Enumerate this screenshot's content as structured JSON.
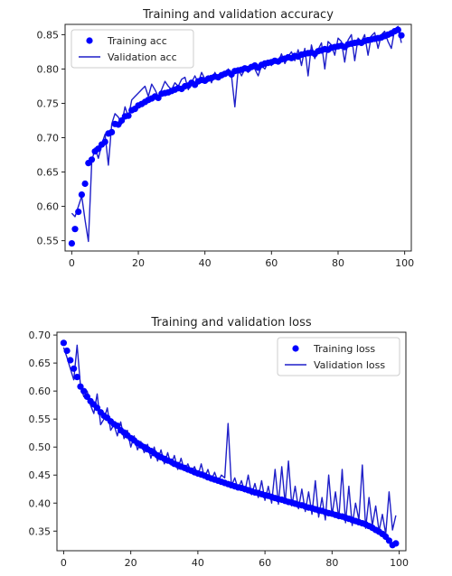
{
  "chart_data": [
    {
      "type": "line",
      "title": "Training and validation accuracy",
      "xlabel": "",
      "ylabel": "",
      "xlim": [
        -2,
        102
      ],
      "ylim": [
        0.535,
        0.865
      ],
      "xticks": [
        0,
        20,
        40,
        60,
        80,
        100
      ],
      "yticks": [
        0.55,
        0.6,
        0.65,
        0.7,
        0.75,
        0.8,
        0.85
      ],
      "ytick_labels": [
        "0.55",
        "0.60",
        "0.65",
        "0.70",
        "0.75",
        "0.80",
        "0.85"
      ],
      "legend_position": "upper-left",
      "grid": false,
      "series": [
        {
          "name": "Training acc",
          "style": "markers",
          "color": "#0000ff",
          "x": [
            0,
            1,
            2,
            3,
            4,
            5,
            6,
            7,
            8,
            9,
            10,
            11,
            12,
            13,
            14,
            15,
            16,
            17,
            18,
            19,
            20,
            21,
            22,
            23,
            24,
            25,
            26,
            27,
            28,
            29,
            30,
            31,
            32,
            33,
            34,
            35,
            36,
            37,
            38,
            39,
            40,
            41,
            42,
            43,
            44,
            45,
            46,
            47,
            48,
            49,
            50,
            51,
            52,
            53,
            54,
            55,
            56,
            57,
            58,
            59,
            60,
            61,
            62,
            63,
            64,
            65,
            66,
            67,
            68,
            69,
            70,
            71,
            72,
            73,
            74,
            75,
            76,
            77,
            78,
            79,
            80,
            81,
            82,
            83,
            84,
            85,
            86,
            87,
            88,
            89,
            90,
            91,
            92,
            93,
            94,
            95,
            96,
            97,
            98,
            99
          ],
          "y": [
            0.546,
            0.567,
            0.592,
            0.617,
            0.633,
            0.663,
            0.668,
            0.68,
            0.684,
            0.69,
            0.694,
            0.706,
            0.708,
            0.72,
            0.719,
            0.725,
            0.731,
            0.732,
            0.74,
            0.742,
            0.747,
            0.749,
            0.752,
            0.755,
            0.757,
            0.76,
            0.758,
            0.764,
            0.765,
            0.766,
            0.768,
            0.77,
            0.772,
            0.771,
            0.775,
            0.776,
            0.78,
            0.777,
            0.782,
            0.784,
            0.783,
            0.786,
            0.787,
            0.789,
            0.788,
            0.791,
            0.793,
            0.795,
            0.792,
            0.797,
            0.798,
            0.799,
            0.801,
            0.8,
            0.803,
            0.805,
            0.802,
            0.806,
            0.808,
            0.809,
            0.81,
            0.812,
            0.811,
            0.814,
            0.815,
            0.817,
            0.816,
            0.819,
            0.818,
            0.821,
            0.822,
            0.823,
            0.824,
            0.822,
            0.826,
            0.827,
            0.829,
            0.828,
            0.831,
            0.832,
            0.833,
            0.834,
            0.832,
            0.836,
            0.837,
            0.838,
            0.839,
            0.838,
            0.841,
            0.842,
            0.843,
            0.844,
            0.845,
            0.846,
            0.848,
            0.85,
            0.852,
            0.855,
            0.857,
            0.849
          ]
        },
        {
          "name": "Validation acc",
          "style": "line",
          "color": "#1f1fc8",
          "x": [
            0,
            1,
            2,
            3,
            4,
            5,
            6,
            7,
            8,
            9,
            10,
            11,
            12,
            13,
            14,
            15,
            16,
            17,
            18,
            19,
            20,
            21,
            22,
            23,
            24,
            25,
            26,
            27,
            28,
            29,
            30,
            31,
            32,
            33,
            34,
            35,
            36,
            37,
            38,
            39,
            40,
            41,
            42,
            43,
            44,
            45,
            46,
            47,
            48,
            49,
            50,
            51,
            52,
            53,
            54,
            55,
            56,
            57,
            58,
            59,
            60,
            61,
            62,
            63,
            64,
            65,
            66,
            67,
            68,
            69,
            70,
            71,
            72,
            73,
            74,
            75,
            76,
            77,
            78,
            79,
            80,
            81,
            82,
            83,
            84,
            85,
            86,
            87,
            88,
            89,
            90,
            91,
            92,
            93,
            94,
            95,
            96,
            97,
            98,
            99
          ],
          "y": [
            0.59,
            0.585,
            0.6,
            0.615,
            0.58,
            0.549,
            0.665,
            0.685,
            0.67,
            0.69,
            0.705,
            0.66,
            0.72,
            0.735,
            0.73,
            0.72,
            0.745,
            0.73,
            0.755,
            0.76,
            0.765,
            0.77,
            0.775,
            0.76,
            0.778,
            0.77,
            0.76,
            0.77,
            0.782,
            0.775,
            0.77,
            0.78,
            0.775,
            0.785,
            0.788,
            0.77,
            0.78,
            0.79,
            0.78,
            0.795,
            0.785,
            0.79,
            0.78,
            0.795,
            0.785,
            0.795,
            0.79,
            0.8,
            0.79,
            0.745,
            0.8,
            0.79,
            0.8,
            0.795,
            0.805,
            0.8,
            0.79,
            0.805,
            0.8,
            0.81,
            0.805,
            0.815,
            0.81,
            0.822,
            0.808,
            0.818,
            0.825,
            0.812,
            0.828,
            0.805,
            0.83,
            0.79,
            0.835,
            0.815,
            0.828,
            0.838,
            0.8,
            0.84,
            0.835,
            0.82,
            0.845,
            0.84,
            0.81,
            0.842,
            0.85,
            0.812,
            0.845,
            0.84,
            0.85,
            0.82,
            0.848,
            0.853,
            0.83,
            0.85,
            0.855,
            0.84,
            0.83,
            0.858,
            0.862,
            0.838
          ]
        }
      ]
    },
    {
      "type": "line",
      "title": "Training and validation loss",
      "xlabel": "",
      "ylabel": "",
      "xlim": [
        -2,
        102
      ],
      "ylim": [
        0.315,
        0.705
      ],
      "xticks": [
        0,
        20,
        40,
        60,
        80,
        100
      ],
      "yticks": [
        0.35,
        0.4,
        0.45,
        0.5,
        0.55,
        0.6,
        0.65,
        0.7
      ],
      "ytick_labels": [
        "0.35",
        "0.40",
        "0.45",
        "0.50",
        "0.55",
        "0.60",
        "0.65",
        "0.70"
      ],
      "legend_position": "upper-right",
      "grid": false,
      "series": [
        {
          "name": "Training loss",
          "style": "markers",
          "color": "#0000ff",
          "x": [
            0,
            1,
            2,
            3,
            4,
            5,
            6,
            7,
            8,
            9,
            10,
            11,
            12,
            13,
            14,
            15,
            16,
            17,
            18,
            19,
            20,
            21,
            22,
            23,
            24,
            25,
            26,
            27,
            28,
            29,
            30,
            31,
            32,
            33,
            34,
            35,
            36,
            37,
            38,
            39,
            40,
            41,
            42,
            43,
            44,
            45,
            46,
            47,
            48,
            49,
            50,
            51,
            52,
            53,
            54,
            55,
            56,
            57,
            58,
            59,
            60,
            61,
            62,
            63,
            64,
            65,
            66,
            67,
            68,
            69,
            70,
            71,
            72,
            73,
            74,
            75,
            76,
            77,
            78,
            79,
            80,
            81,
            82,
            83,
            84,
            85,
            86,
            87,
            88,
            89,
            90,
            91,
            92,
            93,
            94,
            95,
            96,
            97,
            98,
            99
          ],
          "y": [
            0.686,
            0.672,
            0.655,
            0.64,
            0.625,
            0.608,
            0.6,
            0.59,
            0.582,
            0.576,
            0.57,
            0.562,
            0.556,
            0.552,
            0.546,
            0.541,
            0.538,
            0.53,
            0.526,
            0.521,
            0.516,
            0.512,
            0.507,
            0.503,
            0.5,
            0.496,
            0.493,
            0.489,
            0.485,
            0.482,
            0.479,
            0.476,
            0.474,
            0.47,
            0.468,
            0.465,
            0.463,
            0.46,
            0.458,
            0.455,
            0.453,
            0.451,
            0.449,
            0.446,
            0.444,
            0.442,
            0.44,
            0.438,
            0.436,
            0.434,
            0.432,
            0.43,
            0.428,
            0.427,
            0.425,
            0.423,
            0.421,
            0.419,
            0.418,
            0.416,
            0.414,
            0.413,
            0.411,
            0.409,
            0.407,
            0.406,
            0.404,
            0.402,
            0.401,
            0.399,
            0.397,
            0.396,
            0.394,
            0.392,
            0.391,
            0.389,
            0.387,
            0.386,
            0.384,
            0.382,
            0.381,
            0.379,
            0.377,
            0.376,
            0.374,
            0.372,
            0.37,
            0.368,
            0.366,
            0.364,
            0.362,
            0.359,
            0.356,
            0.352,
            0.349,
            0.345,
            0.34,
            0.333,
            0.325,
            0.328
          ]
        },
        {
          "name": "Validation loss",
          "style": "line",
          "color": "#1f1fc8",
          "x": [
            0,
            1,
            2,
            3,
            4,
            5,
            6,
            7,
            8,
            9,
            10,
            11,
            12,
            13,
            14,
            15,
            16,
            17,
            18,
            19,
            20,
            21,
            22,
            23,
            24,
            25,
            26,
            27,
            28,
            29,
            30,
            31,
            32,
            33,
            34,
            35,
            36,
            37,
            38,
            39,
            40,
            41,
            42,
            43,
            44,
            45,
            46,
            47,
            48,
            49,
            50,
            51,
            52,
            53,
            54,
            55,
            56,
            57,
            58,
            59,
            60,
            61,
            62,
            63,
            64,
            65,
            66,
            67,
            68,
            69,
            70,
            71,
            72,
            73,
            74,
            75,
            76,
            77,
            78,
            79,
            80,
            81,
            82,
            83,
            84,
            85,
            86,
            87,
            88,
            89,
            90,
            91,
            92,
            93,
            94,
            95,
            96,
            97,
            98,
            99
          ],
          "y": [
            0.678,
            0.66,
            0.64,
            0.62,
            0.682,
            0.61,
            0.59,
            0.6,
            0.575,
            0.56,
            0.595,
            0.54,
            0.55,
            0.57,
            0.53,
            0.54,
            0.52,
            0.545,
            0.515,
            0.53,
            0.5,
            0.52,
            0.495,
            0.51,
            0.49,
            0.505,
            0.48,
            0.5,
            0.475,
            0.495,
            0.47,
            0.49,
            0.468,
            0.485,
            0.46,
            0.48,
            0.458,
            0.47,
            0.455,
            0.465,
            0.448,
            0.47,
            0.445,
            0.46,
            0.44,
            0.455,
            0.438,
            0.45,
            0.445,
            0.542,
            0.43,
            0.445,
            0.425,
            0.44,
            0.42,
            0.45,
            0.415,
            0.435,
            0.41,
            0.44,
            0.405,
            0.43,
            0.4,
            0.46,
            0.398,
            0.465,
            0.4,
            0.475,
            0.395,
            0.43,
            0.39,
            0.425,
            0.385,
            0.42,
            0.38,
            0.44,
            0.375,
            0.41,
            0.37,
            0.45,
            0.378,
            0.42,
            0.372,
            0.46,
            0.365,
            0.43,
            0.36,
            0.4,
            0.37,
            0.468,
            0.355,
            0.41,
            0.36,
            0.395,
            0.35,
            0.38,
            0.345,
            0.42,
            0.352,
            0.378
          ]
        }
      ]
    }
  ]
}
